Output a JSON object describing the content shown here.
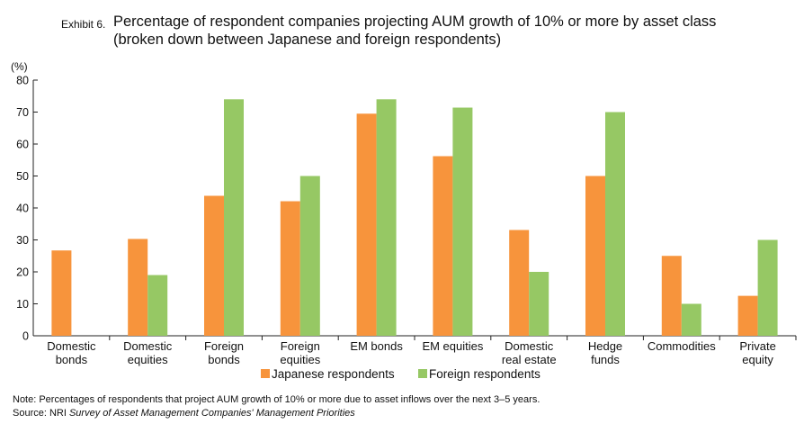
{
  "header": {
    "exhibit": "Exhibit 6.",
    "title_line1": "Percentage of respondent companies projecting AUM growth of 10% or more by asset class",
    "title_line2": "(broken down between Japanese and foreign respondents)"
  },
  "chart_data": {
    "type": "bar",
    "unit_label": "(%)",
    "ylim": [
      0,
      80
    ],
    "yticks": [
      0,
      10,
      20,
      30,
      40,
      50,
      60,
      70,
      80
    ],
    "grid": false,
    "legend_position": "bottom-center",
    "categories": [
      [
        "Domestic",
        "bonds"
      ],
      [
        "Domestic",
        "equities"
      ],
      [
        "Foreign",
        "bonds"
      ],
      [
        "Foreign",
        "equities"
      ],
      [
        "EM bonds"
      ],
      [
        "EM equities"
      ],
      [
        "Domestic",
        "real estate"
      ],
      [
        "Hedge",
        "funds"
      ],
      [
        "Commodities"
      ],
      [
        "Private",
        "equity"
      ]
    ],
    "series": [
      {
        "name": "Japanese respondents",
        "color": "#f7943c",
        "values": [
          26.7,
          30.3,
          43.8,
          42.1,
          69.5,
          56.2,
          33.1,
          50.0,
          25.0,
          12.5
        ]
      },
      {
        "name": "Foreign respondents",
        "color": "#96c864",
        "values": [
          0,
          19.0,
          74.0,
          50.0,
          74.0,
          71.4,
          20.0,
          70.0,
          10.0,
          30.0
        ]
      }
    ]
  },
  "footer": {
    "note": "Note: Percentages of respondents that project AUM growth of 10% or more due to asset inflows over the next 3–5 years.",
    "source_prefix": "Source: NRI ",
    "source_title": "Survey of Asset Management Companies' Management Priorities"
  }
}
